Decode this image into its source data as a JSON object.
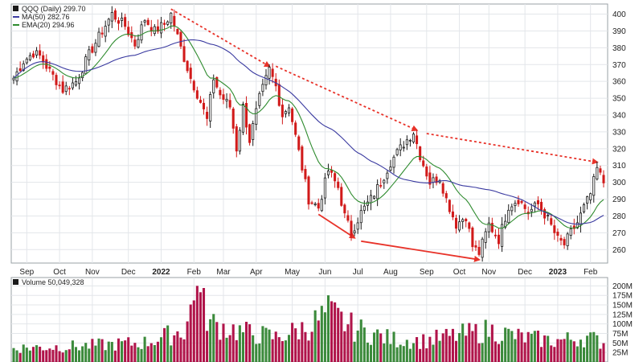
{
  "chart_data": [
    {
      "type": "candlestick",
      "ticker_label": "QQQ (Daily) 299.70",
      "legend": [
        {
          "label": "MA(50) 282.76",
          "color": "#3a3aa0"
        },
        {
          "label": "EMA(20) 294.96",
          "color": "#2e8b2e"
        }
      ],
      "y_ticks": [
        260,
        270,
        280,
        290,
        300,
        310,
        320,
        330,
        340,
        350,
        360,
        370,
        380,
        390,
        400
      ],
      "ylim": [
        252,
        406
      ],
      "x_labels": [
        "Sep",
        "Oct",
        "Nov",
        "Dec",
        "2022",
        "Feb",
        "Mar",
        "Apr",
        "May",
        "Jun",
        "Jul",
        "Aug",
        "Sep",
        "Oct",
        "Nov",
        "Dec",
        "2023",
        "Feb"
      ],
      "grid": true,
      "colors": {
        "up": "#1a1a1a",
        "down": "#d11a1a",
        "ma50": "#3a3aa0",
        "ema20": "#2e8b2e",
        "trendline": "#e8332a"
      },
      "close_anchors": [
        {
          "t": 0,
          "v": 362
        },
        {
          "t": 3,
          "v": 372
        },
        {
          "t": 6,
          "v": 377
        },
        {
          "t": 8,
          "v": 375
        },
        {
          "t": 11,
          "v": 366
        },
        {
          "t": 15,
          "v": 355
        },
        {
          "t": 19,
          "v": 360
        },
        {
          "t": 23,
          "v": 376
        },
        {
          "t": 27,
          "v": 390
        },
        {
          "t": 30,
          "v": 400
        },
        {
          "t": 34,
          "v": 393
        },
        {
          "t": 37,
          "v": 382
        },
        {
          "t": 40,
          "v": 397
        },
        {
          "t": 43,
          "v": 390
        },
        {
          "t": 46,
          "v": 394
        },
        {
          "t": 48,
          "v": 400
        },
        {
          "t": 51,
          "v": 380
        },
        {
          "t": 54,
          "v": 362
        },
        {
          "t": 57,
          "v": 348
        },
        {
          "t": 59,
          "v": 337
        },
        {
          "t": 61,
          "v": 362
        },
        {
          "t": 63,
          "v": 352
        },
        {
          "t": 66,
          "v": 345
        },
        {
          "t": 68,
          "v": 320
        },
        {
          "t": 70,
          "v": 345
        },
        {
          "t": 72,
          "v": 325
        },
        {
          "t": 75,
          "v": 350
        },
        {
          "t": 78,
          "v": 367
        },
        {
          "t": 80,
          "v": 357
        },
        {
          "t": 82,
          "v": 340
        },
        {
          "t": 84,
          "v": 346
        },
        {
          "t": 87,
          "v": 318
        },
        {
          "t": 90,
          "v": 290
        },
        {
          "t": 93,
          "v": 285
        },
        {
          "t": 96,
          "v": 307
        },
        {
          "t": 99,
          "v": 297
        },
        {
          "t": 101,
          "v": 280
        },
        {
          "t": 103,
          "v": 270
        },
        {
          "t": 106,
          "v": 282
        },
        {
          "t": 109,
          "v": 290
        },
        {
          "t": 112,
          "v": 300
        },
        {
          "t": 115,
          "v": 312
        },
        {
          "t": 119,
          "v": 323
        },
        {
          "t": 122,
          "v": 330
        },
        {
          "t": 124,
          "v": 316
        },
        {
          "t": 127,
          "v": 300
        },
        {
          "t": 130,
          "v": 303
        },
        {
          "t": 132,
          "v": 290
        },
        {
          "t": 135,
          "v": 275
        },
        {
          "t": 138,
          "v": 280
        },
        {
          "t": 140,
          "v": 262
        },
        {
          "t": 142,
          "v": 258
        },
        {
          "t": 145,
          "v": 275
        },
        {
          "t": 148,
          "v": 266
        },
        {
          "t": 151,
          "v": 286
        },
        {
          "t": 154,
          "v": 290
        },
        {
          "t": 157,
          "v": 282
        },
        {
          "t": 160,
          "v": 287
        },
        {
          "t": 163,
          "v": 278
        },
        {
          "t": 166,
          "v": 266
        },
        {
          "t": 168,
          "v": 263
        },
        {
          "t": 170,
          "v": 270
        },
        {
          "t": 172,
          "v": 276
        },
        {
          "t": 174,
          "v": 285
        },
        {
          "t": 176,
          "v": 293
        },
        {
          "t": 178,
          "v": 308
        },
        {
          "t": 180,
          "v": 300
        }
      ],
      "ohlc_note": "candles derived from close anchors"
    },
    {
      "type": "bar",
      "volume_label": "Volume 50,049,328",
      "y_ticks_labels": [
        "25M",
        "50M",
        "75M",
        "100M",
        "125M",
        "150M",
        "175M",
        "200M"
      ],
      "y_ticks_values": [
        25,
        50,
        75,
        100,
        125,
        150,
        175,
        200
      ],
      "ylim": [
        0,
        205
      ],
      "colors": {
        "up": "#3b8a3b",
        "down": "#b0144a"
      },
      "volume_anchors": [
        {
          "t": 0,
          "v": 40
        },
        {
          "t": 20,
          "v": 45
        },
        {
          "t": 40,
          "v": 55
        },
        {
          "t": 52,
          "v": 90
        },
        {
          "t": 56,
          "v": 200
        },
        {
          "t": 60,
          "v": 110
        },
        {
          "t": 70,
          "v": 85
        },
        {
          "t": 80,
          "v": 70
        },
        {
          "t": 90,
          "v": 100
        },
        {
          "t": 96,
          "v": 140
        },
        {
          "t": 104,
          "v": 95
        },
        {
          "t": 115,
          "v": 65
        },
        {
          "t": 125,
          "v": 60
        },
        {
          "t": 135,
          "v": 75
        },
        {
          "t": 145,
          "v": 90
        },
        {
          "t": 155,
          "v": 70
        },
        {
          "t": 165,
          "v": 60
        },
        {
          "t": 175,
          "v": 70
        },
        {
          "t": 180,
          "v": 55
        }
      ]
    }
  ]
}
